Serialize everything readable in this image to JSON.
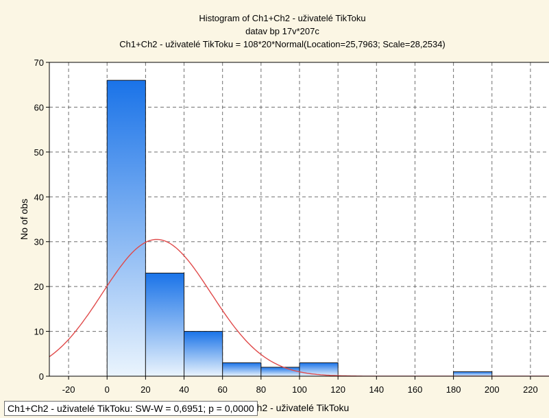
{
  "chart_data": {
    "type": "bar",
    "title_lines": [
      "Histogram of Ch1+Ch2 - uživatelé TikToku",
      "datav bp 17v*207c",
      "Ch1+Ch2 - uživatelé TikToku = 108*20*Normal(Location=25,7963; Scale=28,2534)"
    ],
    "xlabel": "Ch1+Ch2 - uživatelé TikToku",
    "ylabel": "No of obs",
    "xlim": [
      -30,
      230
    ],
    "ylim": [
      0,
      70
    ],
    "x_ticks": [
      -20,
      0,
      20,
      40,
      60,
      80,
      100,
      120,
      140,
      160,
      180,
      200,
      220
    ],
    "y_ticks": [
      0,
      10,
      20,
      30,
      40,
      50,
      60,
      70
    ],
    "bins": [
      {
        "from": 0,
        "to": 20,
        "count": 66
      },
      {
        "from": 20,
        "to": 40,
        "count": 23
      },
      {
        "from": 40,
        "to": 60,
        "count": 10
      },
      {
        "from": 60,
        "to": 80,
        "count": 3
      },
      {
        "from": 80,
        "to": 100,
        "count": 2
      },
      {
        "from": 100,
        "to": 120,
        "count": 3
      },
      {
        "from": 120,
        "to": 140,
        "count": 0
      },
      {
        "from": 140,
        "to": 160,
        "count": 0
      },
      {
        "from": 160,
        "to": 180,
        "count": 0
      },
      {
        "from": 180,
        "to": 200,
        "count": 1
      }
    ],
    "normal_fit": {
      "n": 108,
      "bin_width": 20,
      "location": 25.7963,
      "scale": 28.2534
    },
    "grid": true,
    "colors": {
      "bar_top": "#1a73e8",
      "bar_bottom": "#eaf4fd",
      "bar_stroke": "#1a1a1a",
      "fit_line": "#e04a4a",
      "grid": "#6e6e6e"
    }
  },
  "legend": {
    "text": "Ch1+Ch2 - uživatelé TikToku:   SW-W = 0,6951; p = 0,0000"
  }
}
